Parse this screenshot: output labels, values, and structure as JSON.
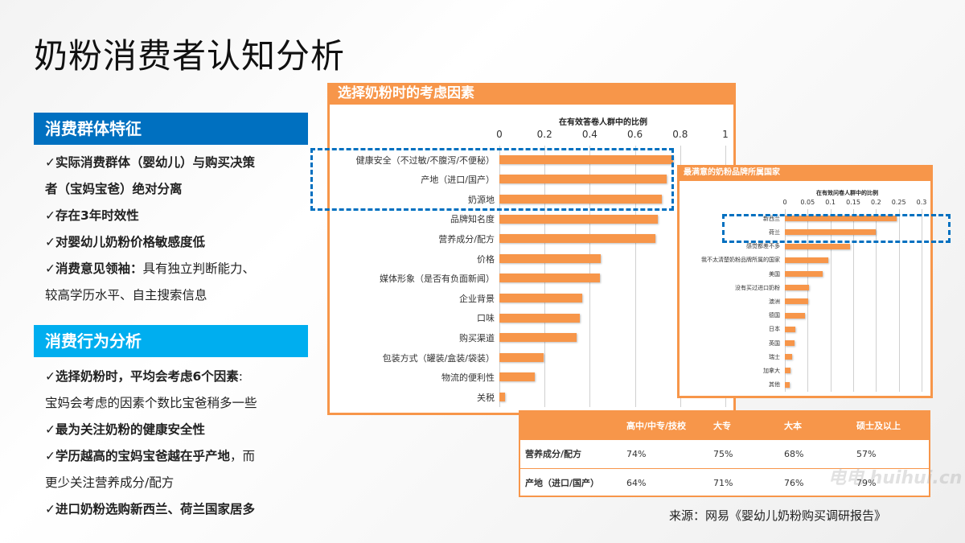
{
  "page": {
    "title": "奶粉消费者认知分析",
    "source": "来源：网易《婴幼儿奶粉购买调研报告》",
    "watermark": "电电 huihui.cn"
  },
  "colors": {
    "primary_blue": "#0070c0",
    "light_blue": "#00aeef",
    "orange": "#f7964a"
  },
  "sections": [
    {
      "header": "消费群体特征",
      "lines": [
        {
          "bold": "✓实际消费群体（婴幼儿）与购买决策",
          "normal": ""
        },
        {
          "bold": "者（宝妈宝爸）绝对分离",
          "normal": ""
        },
        {
          "bold": "✓存在3年时效性",
          "normal": ""
        },
        {
          "bold": "✓对婴幼儿奶粉价格敏感度低",
          "normal": ""
        },
        {
          "bold": "✓消费意见领袖：",
          "normal": "具有独立判断能力、"
        },
        {
          "bold": "",
          "normal": "较高学历水平、自主搜索信息"
        }
      ]
    },
    {
      "header": "消费行为分析",
      "lines": [
        {
          "bold": "✓选择奶粉时，平均会考虑6个因素",
          "normal": ":"
        },
        {
          "bold": "",
          "normal": "宝妈会考虑的因素个数比宝爸稍多一些"
        },
        {
          "bold": "✓最为关注奶粉的健康安全性",
          "normal": ""
        },
        {
          "bold": "✓学历越高的宝妈宝爸越在乎产地",
          "normal": "，而"
        },
        {
          "bold": "",
          "normal": "更少关注营养成分/配方"
        },
        {
          "bold": "✓进口奶粉选购新西兰、荷兰国家居多",
          "normal": ""
        }
      ]
    }
  ],
  "chart_data": [
    {
      "type": "bar",
      "orientation": "horizontal",
      "title": "选择奶粉时的考虑因素",
      "xlabel": "在有效答卷人群中的比例",
      "ylabel": "",
      "xlim": [
        0,
        1
      ],
      "ticks": [
        "0",
        "0.2",
        "0.4",
        "0.6",
        "0.8",
        "1"
      ],
      "grid": true,
      "categories": [
        "健康安全（不过敏/不腹泻/不便秘）",
        "产地（进口/国产）",
        "奶源地",
        "品牌知名度",
        "营养成分/配方",
        "价格",
        "媒体形象（是否有负面新闻）",
        "企业背景",
        "口味",
        "购买渠道",
        "包装方式（罐装/盒装/袋装）",
        "物流的便利性",
        "关税"
      ],
      "values": [
        0.77,
        0.74,
        0.72,
        0.7,
        0.69,
        0.45,
        0.445,
        0.365,
        0.355,
        0.34,
        0.195,
        0.155,
        0.025
      ],
      "highlighted": [
        "健康安全（不过敏/不腹泻/不便秘）",
        "产地（进口/国产）",
        "奶源地"
      ]
    },
    {
      "type": "bar",
      "orientation": "horizontal",
      "title": "最满意的奶粉品牌所属国家",
      "xlabel": "在有效问卷人群中的比例",
      "ylabel": "",
      "xlim": [
        0,
        0.3
      ],
      "ticks": [
        "0",
        "0.05",
        "0.1",
        "0.15",
        "0.2",
        "0.25",
        "0.3"
      ],
      "grid": true,
      "categories": [
        "新西兰",
        "荷兰",
        "感觉都差不多",
        "我不太清楚奶粉品牌所属的国家",
        "美国",
        "没有买过进口奶粉",
        "澳洲",
        "德国",
        "日本",
        "英国",
        "瑞士",
        "加拿大",
        "其他"
      ],
      "values": [
        0.245,
        0.2,
        0.143,
        0.095,
        0.083,
        0.053,
        0.052,
        0.044,
        0.023,
        0.021,
        0.016,
        0.012,
        0.011
      ],
      "highlighted": [
        "新西兰",
        "荷兰"
      ]
    },
    {
      "type": "table",
      "columns": [
        "",
        "高中/中专/技校",
        "大专",
        "大本",
        "硕士及以上"
      ],
      "rows": [
        [
          "营养成分/配方",
          "74%",
          "75%",
          "68%",
          "57%"
        ],
        [
          "产地（进口/国产）",
          "64%",
          "71%",
          "76%",
          "79%"
        ]
      ]
    }
  ]
}
